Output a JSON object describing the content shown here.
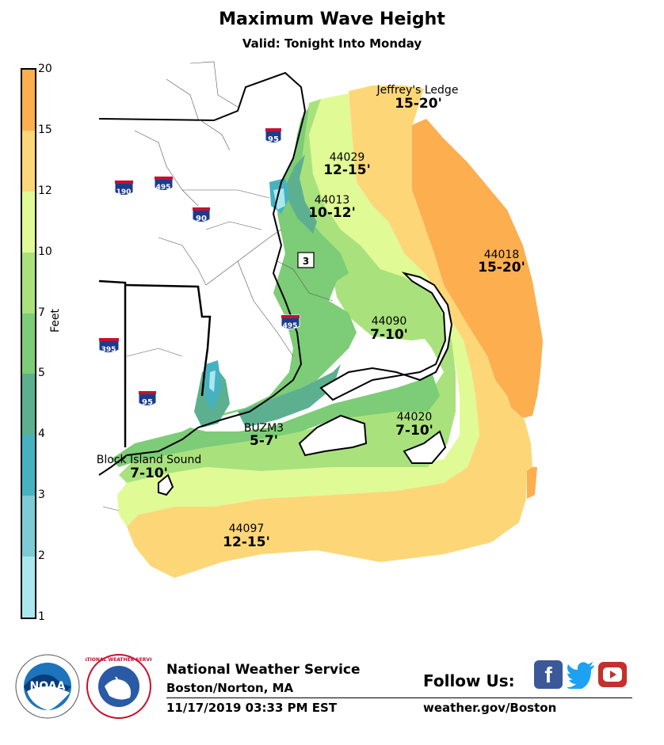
{
  "title": "Maximum Wave Height",
  "subtitle": "Valid: Tonight Into Monday",
  "colorbar": {
    "label": "Feet",
    "ticks": [
      "20",
      "15",
      "12",
      "10",
      "7",
      "5",
      "4",
      "3",
      "2",
      "1"
    ],
    "colors": [
      "#fdae4f",
      "#fdd777",
      "#e0fa96",
      "#a9e27d",
      "#7dcc77",
      "#5db08f",
      "#46b2c0",
      "#7dcbd4",
      "#a9e8ef"
    ]
  },
  "stations": [
    {
      "id": "Jeffrey's Ledge",
      "range": "15-20'"
    },
    {
      "id": "44029",
      "range": "12-15'"
    },
    {
      "id": "44013",
      "range": "10-12'"
    },
    {
      "id": "44018",
      "range": "15-20'"
    },
    {
      "id": "44090",
      "range": "7-10'"
    },
    {
      "id": "44020",
      "range": "7-10'"
    },
    {
      "id": "BUZM3",
      "range": "5-7'"
    },
    {
      "id": "Block Island Sound",
      "range": "7-10'"
    },
    {
      "id": "44097",
      "range": "12-15'"
    }
  ],
  "highways": [
    {
      "name": "95"
    },
    {
      "name": "190"
    },
    {
      "name": "495"
    },
    {
      "name": "90"
    },
    {
      "name": "3"
    },
    {
      "name": "495"
    },
    {
      "name": "395"
    },
    {
      "name": "95"
    }
  ],
  "footer": {
    "agency": "National Weather Service",
    "office": "Boston/Norton, MA",
    "timestamp": "11/17/2019 03:33 PM EST",
    "follow": "Follow Us:",
    "website": "weather.gov/Boston",
    "noaa_logo": "NOAA",
    "nws_logo": "NATIONAL WEATHER SERVICE"
  },
  "icons": [
    "facebook-icon",
    "twitter-icon",
    "youtube-icon"
  ]
}
